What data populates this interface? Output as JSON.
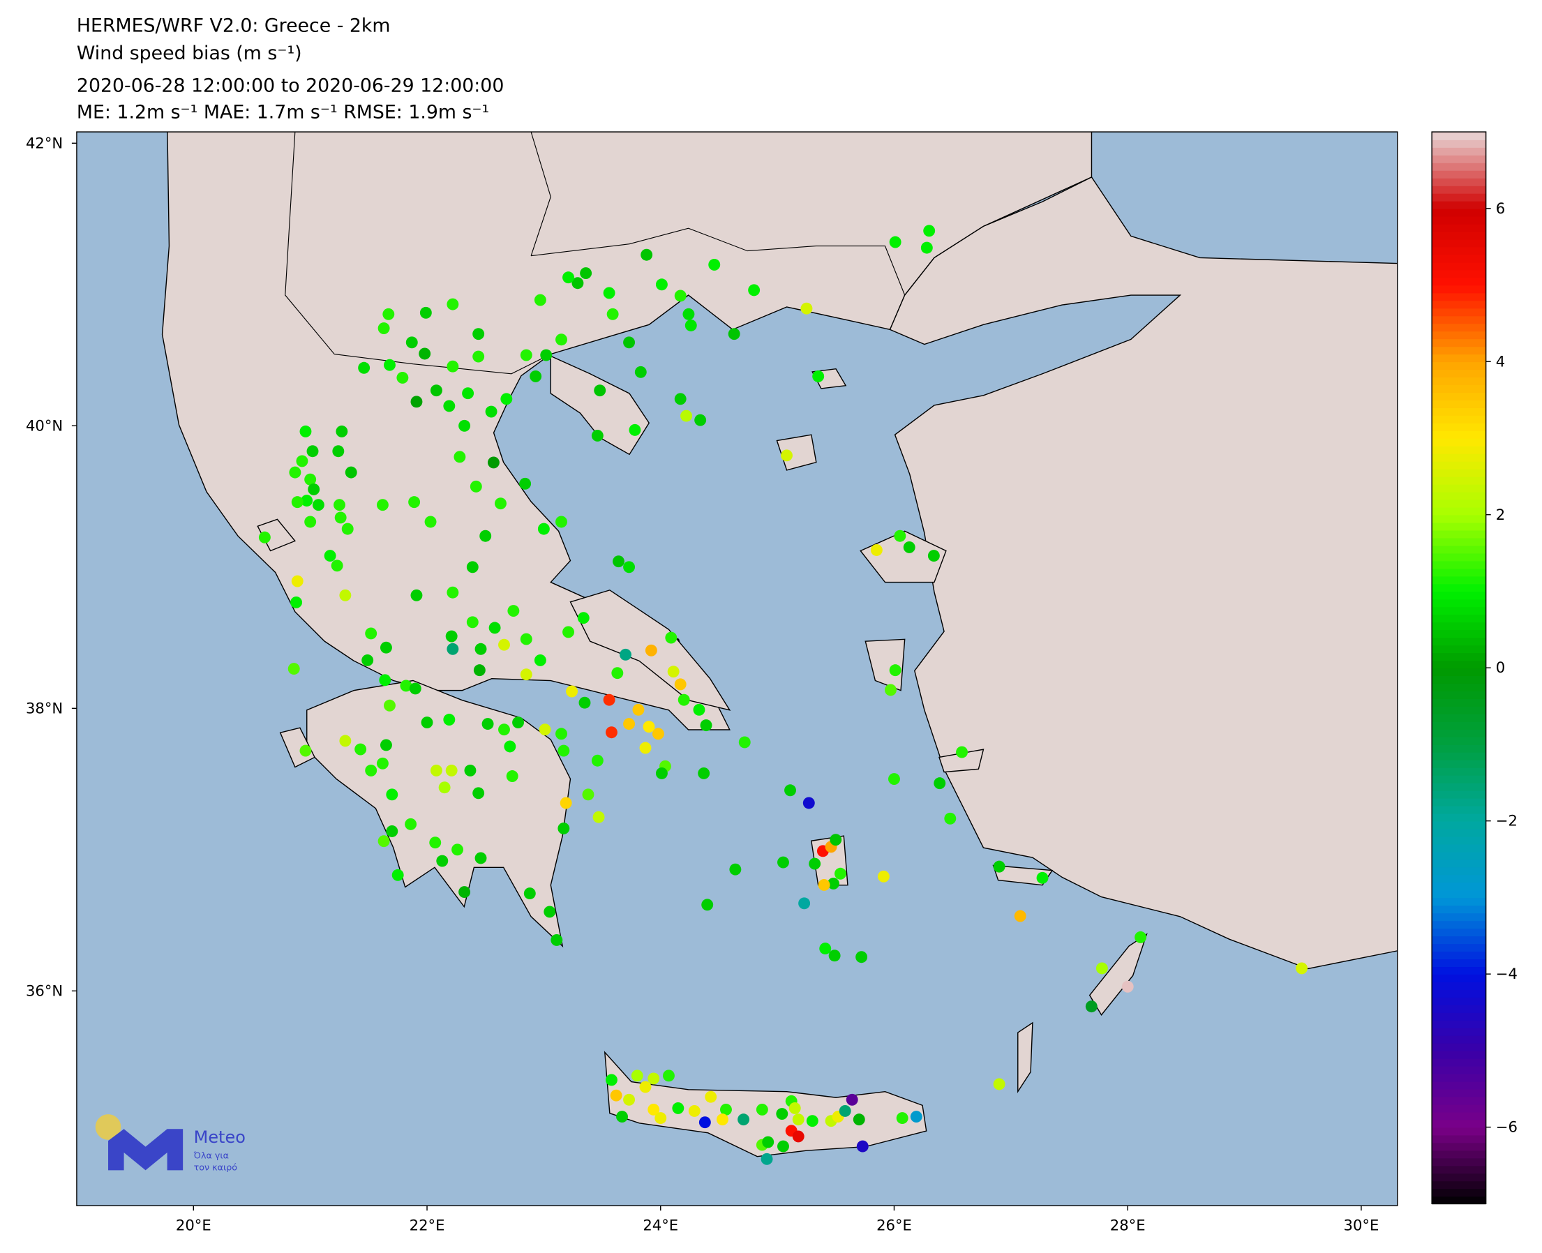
{
  "chart_data": {
    "type": "scatter",
    "title": [
      "HERMES/WRF V2.0: Greece - 2km",
      "Wind speed bias (m s⁻¹)",
      "2020-06-28 12:00:00 to 2020-06-29 12:00:00",
      "ME: 1.2m s⁻¹ MAE: 1.7m s⁻¹ RMSE: 1.9m s⁻¹"
    ],
    "xlim": [
      19.0,
      30.31
    ],
    "ylim": [
      34.48,
      42.08
    ],
    "xticks": [
      {
        "value": 20,
        "label": "20°E"
      },
      {
        "value": 22,
        "label": "22°E"
      },
      {
        "value": 24,
        "label": "24°E"
      },
      {
        "value": 26,
        "label": "26°E"
      },
      {
        "value": 28,
        "label": "28°E"
      },
      {
        "value": 30,
        "label": "30°E"
      }
    ],
    "yticks": [
      {
        "value": 36,
        "label": "36°N"
      },
      {
        "value": 38,
        "label": "38°N"
      },
      {
        "value": 40,
        "label": "40°N"
      },
      {
        "value": 42,
        "label": "42°N"
      }
    ],
    "colorbar": {
      "lim": [
        -7,
        7
      ],
      "ticks": [
        {
          "value": -6,
          "label": "−6"
        },
        {
          "value": -4,
          "label": "−4"
        },
        {
          "value": -2,
          "label": "−2"
        },
        0,
        2,
        4,
        6
      ],
      "colors": [
        "#000000",
        "#7a0088",
        "#3a00a8",
        "#0010e0",
        "#0096d8",
        "#00a8a0",
        "#00a040",
        "#009a00",
        "#00f000",
        "#a8ff00",
        "#ffe800",
        "#ffa500",
        "#ff1000",
        "#d00000",
        "#e8d8d8"
      ]
    },
    "x": [
      26.01,
      26.3,
      26.28,
      23.88,
      24.46,
      23.36,
      23.29,
      23.21,
      23.56,
      24.01,
      24.17,
      24.8,
      25.25,
      22.97,
      23.59,
      24.24,
      24.26,
      24.63,
      23.73,
      23.15,
      23.02,
      22.85,
      22.93,
      23.83,
      23.48,
      23.46,
      23.78,
      24.17,
      24.34,
      24.22,
      25.35,
      25.08,
      22.22,
      21.99,
      21.67,
      21.63,
      21.87,
      22.44,
      22.44,
      21.98,
      22.22,
      22.08,
      21.91,
      22.19,
      22.35,
      22.32,
      22.55,
      22.68,
      21.46,
      21.68,
      21.79,
      20.96,
      21.02,
      20.93,
      20.87,
      21.0,
      21.27,
      21.24,
      21.35,
      21.03,
      20.97,
      20.89,
      21.07,
      21.25,
      21.26,
      21.32,
      21.0,
      21.62,
      21.89,
      22.03,
      20.61,
      21.23,
      21.17,
      20.89,
      20.88,
      21.3,
      20.86,
      22.28,
      22.57,
      22.42,
      22.63,
      22.84,
      22.5,
      23.0,
      23.15,
      22.39,
      21.91,
      22.22,
      22.74,
      23.34,
      23.21,
      23.64,
      23.73,
      22.39,
      22.21,
      22.22,
      22.58,
      22.66,
      22.46,
      22.45,
      22.85,
      22.85,
      22.97,
      21.52,
      21.65,
      21.49,
      23.92,
      23.7,
      24.09,
      24.11,
      24.17,
      23.63,
      23.56,
      23.24,
      23.35,
      23.81,
      23.73,
      23.9,
      23.58,
      23.98,
      23.87,
      24.2,
      24.33,
      24.39,
      24.04,
      24.01,
      23.46,
      23.15,
      23.01,
      23.17,
      23.38,
      23.47,
      23.19,
      23.17,
      21.64,
      21.82,
      21.9,
      22.0,
      22.19,
      22.52,
      22.66,
      22.78,
      22.71,
      21.68,
      21.3,
      21.43,
      21.65,
      21.52,
      21.62,
      22.08,
      22.21,
      22.37,
      22.15,
      22.44,
      22.73,
      20.96,
      21.7,
      21.86,
      21.7,
      21.63,
      22.07,
      22.26,
      22.13,
      22.46,
      21.75,
      22.32,
      22.88,
      23.05,
      23.11,
      24.37,
      24.72,
      25.11,
      25.27,
      25.39,
      25.46,
      25.5,
      25.32,
      25.54,
      25.48,
      25.4,
      25.05,
      25.23,
      25.91,
      24.64,
      24.4,
      25.41,
      25.49,
      25.72,
      25.85,
      26.05,
      26.13,
      26.34,
      26.01,
      25.97,
      26.0,
      26.39,
      26.58,
      26.48,
      26.9,
      27.27,
      27.08,
      28.11,
      27.78,
      28.0,
      27.69,
      29.49,
      26.9,
      23.58,
      23.8,
      23.94,
      24.07,
      23.62,
      23.73,
      23.87,
      23.67,
      23.94,
      24.0,
      24.15,
      24.29,
      24.38,
      24.43,
      24.56,
      24.53,
      24.71,
      24.87,
      24.87,
      24.92,
      24.91,
      25.05,
      25.04,
      25.12,
      25.15,
      25.18,
      25.12,
      25.18,
      25.3,
      25.46,
      25.52,
      25.58,
      25.64,
      25.7,
      25.73,
      26.07,
      26.19
    ],
    "y": [
      41.3,
      41.38,
      41.26,
      41.21,
      41.14,
      41.08,
      41.01,
      41.05,
      40.94,
      41.0,
      40.92,
      40.96,
      40.83,
      40.89,
      40.79,
      40.79,
      40.71,
      40.65,
      40.59,
      40.61,
      40.5,
      40.5,
      40.35,
      40.38,
      40.25,
      39.93,
      39.97,
      40.19,
      40.04,
      40.07,
      40.35,
      39.79,
      40.86,
      40.8,
      40.79,
      40.69,
      40.59,
      40.65,
      40.49,
      40.51,
      40.42,
      40.25,
      40.17,
      40.14,
      40.23,
      40.0,
      40.1,
      40.19,
      40.41,
      40.43,
      40.34,
      39.96,
      39.82,
      39.75,
      39.67,
      39.62,
      39.96,
      39.82,
      39.67,
      39.55,
      39.47,
      39.46,
      39.44,
      39.44,
      39.35,
      39.27,
      39.32,
      39.44,
      39.46,
      39.32,
      39.21,
      39.01,
      39.08,
      38.9,
      38.75,
      38.8,
      38.28,
      39.78,
      39.74,
      39.57,
      39.45,
      39.59,
      39.22,
      39.27,
      39.32,
      39.0,
      38.8,
      38.82,
      38.69,
      38.64,
      38.54,
      39.04,
      39.0,
      38.61,
      38.51,
      38.42,
      38.57,
      38.45,
      38.42,
      38.27,
      38.49,
      38.24,
      38.34,
      38.53,
      38.43,
      38.34,
      38.41,
      38.38,
      38.5,
      38.26,
      38.17,
      38.25,
      38.06,
      38.12,
      38.04,
      37.99,
      37.89,
      37.87,
      37.83,
      37.82,
      37.72,
      38.06,
      37.99,
      37.88,
      37.59,
      37.54,
      37.63,
      37.82,
      37.85,
      37.7,
      37.39,
      37.23,
      37.33,
      37.15,
      38.2,
      38.16,
      38.14,
      37.9,
      37.92,
      37.89,
      37.85,
      37.9,
      37.73,
      38.02,
      37.77,
      37.71,
      37.74,
      37.56,
      37.61,
      37.56,
      37.56,
      37.56,
      37.44,
      37.4,
      37.52,
      37.7,
      37.39,
      37.18,
      37.13,
      37.06,
      37.05,
      37.0,
      36.92,
      36.94,
      36.82,
      36.7,
      36.69,
      36.56,
      36.36,
      37.54,
      37.76,
      37.42,
      37.33,
      36.99,
      37.02,
      37.07,
      36.9,
      36.83,
      36.76,
      36.75,
      36.91,
      36.62,
      36.81,
      36.86,
      36.61,
      36.3,
      36.25,
      36.24,
      39.12,
      39.22,
      39.14,
      39.08,
      38.27,
      38.13,
      37.5,
      37.47,
      37.69,
      37.22,
      36.88,
      36.8,
      36.53,
      36.38,
      36.16,
      36.03,
      35.89,
      36.16,
      35.34,
      35.37,
      35.4,
      35.38,
      35.4,
      35.26,
      35.23,
      35.32,
      35.11,
      35.16,
      35.1,
      35.17,
      35.15,
      35.07,
      35.25,
      35.16,
      35.09,
      35.09,
      35.16,
      34.91,
      34.93,
      34.81,
      34.9,
      35.13,
      35.22,
      35.17,
      35.09,
      35.01,
      34.97,
      35.08,
      35.08,
      35.11,
      35.15,
      35.23,
      35.09,
      34.9,
      35.1,
      35.11
    ],
    "values": [
      1,
      1,
      1,
      0.5,
      1,
      0.5,
      0.5,
      1,
      1,
      1,
      1.2,
      1,
      2.5,
      1.2,
      1.2,
      0.8,
      0.9,
      0.5,
      0.5,
      1.2,
      0.6,
      1.2,
      0.6,
      0.6,
      0.5,
      0.6,
      1,
      0.6,
      0.6,
      2.2,
      1,
      2.5,
      1.2,
      0.6,
      1.2,
      1.2,
      0.6,
      0.6,
      1.2,
      0.3,
      1.2,
      0.5,
      0.1,
      0.8,
      0.9,
      0.8,
      0.8,
      1,
      0.8,
      1,
      1.2,
      1,
      0.6,
      1.2,
      1.2,
      1.2,
      0.6,
      0.6,
      0.5,
      0.6,
      1,
      1.2,
      0.8,
      1.2,
      1.2,
      1.2,
      1.2,
      1.2,
      1.2,
      1.2,
      1.2,
      1.2,
      1,
      2.8,
      1,
      2.3,
      1.5,
      1.2,
      0,
      1.2,
      1.2,
      0.6,
      0.6,
      1,
      1.2,
      0.6,
      0.6,
      1.2,
      1.2,
      1,
      1.2,
      0.5,
      0.8,
      1.2,
      0.6,
      -1.5,
      0.8,
      2.5,
      0.6,
      0.3,
      1.2,
      2.5,
      1,
      1.2,
      0.6,
      0.6,
      3.8,
      -1.7,
      1.2,
      2.5,
      3.5,
      1.2,
      4.8,
      2.8,
      0.6,
      3.5,
      3.5,
      3,
      4.8,
      3.5,
      2.8,
      1.2,
      1,
      0.6,
      1.5,
      0.6,
      1.2,
      1.2,
      2.5,
      1.2,
      1.5,
      2.3,
      3.3,
      0.6,
      1,
      1.2,
      0.6,
      0.6,
      1,
      0.6,
      1.2,
      0.6,
      1,
      1.5,
      2.3,
      1.2,
      0.6,
      1.2,
      1.2,
      2.3,
      2.3,
      0.6,
      2,
      0.6,
      1.2,
      1.5,
      1,
      1.2,
      0.6,
      1.5,
      1.2,
      1.2,
      0.6,
      0.6,
      1,
      0.3,
      0.6,
      0.6,
      0.6,
      0.6,
      1.2,
      0.6,
      -4.3,
      5,
      4,
      0.5,
      0.6,
      1.2,
      0.6,
      3.5,
      0.6,
      -2,
      2.8,
      0.6,
      0.6,
      1,
      0.6,
      0.6,
      2.8,
      1.2,
      0.6,
      0.6,
      1.2,
      1.5,
      1.2,
      0.6,
      1.2,
      1.2,
      0.6,
      1,
      3.7,
      1.2,
      2,
      6.9,
      -0.5,
      2.5,
      2.3,
      1,
      2,
      2.3,
      1.2,
      3.5,
      2.5,
      2.8,
      0.6,
      3,
      2.8,
      1,
      2.8,
      -4,
      2.8,
      1.2,
      3,
      -1.5,
      1.2,
      1.5,
      0.6,
      -1.8,
      0.6,
      0.6,
      1.2,
      2.3,
      2.3,
      5,
      5.5,
      1,
      2.3,
      2.8,
      -1.5,
      -5.5,
      0.3,
      -4.5,
      1.2,
      -2.8
    ]
  },
  "logo": {
    "name": "Meteo",
    "tagline": [
      "Όλα για",
      "τον καιρό"
    ]
  }
}
